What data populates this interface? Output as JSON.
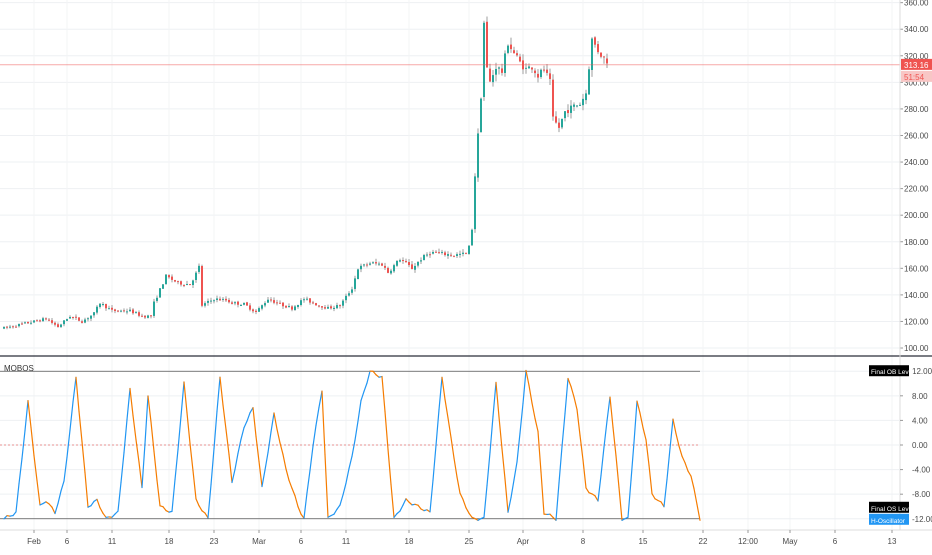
{
  "colors": {
    "up": "#26a69a",
    "down": "#ef5350",
    "wick": "#9e9e9e",
    "grid": "#eef0f3",
    "axis_text": "#4a4a4a",
    "price_line": "#ef5350",
    "osc_rise": "#2196f3",
    "osc_fall": "#f57c00",
    "level_line": "#555555",
    "zero_line": "#e57373",
    "black_tag": "#000000",
    "blue_tag": "#2196f3"
  },
  "chart_data": [
    {
      "type": "candlestick",
      "title": "",
      "y_ticks": [
        "100.00",
        "120.00",
        "140.00",
        "160.00",
        "180.00",
        "200.00",
        "220.00",
        "240.00",
        "260.00",
        "280.00",
        "300.00",
        "320.00",
        "340.00",
        "360.00"
      ],
      "ylim": [
        97,
        362
      ],
      "last_price": "313.16",
      "countdown": "51:54",
      "anchors": [
        [
          0,
          115
        ],
        [
          6,
          118
        ],
        [
          14,
          122
        ],
        [
          18,
          116
        ],
        [
          22,
          124
        ],
        [
          26,
          120
        ],
        [
          30,
          126
        ],
        [
          32,
          134
        ],
        [
          36,
          128
        ],
        [
          42,
          128
        ],
        [
          46,
          124
        ],
        [
          49,
          124
        ],
        [
          50,
          134
        ],
        [
          54,
          154
        ],
        [
          58,
          149
        ],
        [
          62,
          148
        ],
        [
          64,
          156
        ],
        [
          65,
          161
        ],
        [
          66,
          132
        ],
        [
          70,
          137
        ],
        [
          74,
          136
        ],
        [
          76,
          134
        ],
        [
          80,
          133
        ],
        [
          84,
          127
        ],
        [
          88,
          137
        ],
        [
          92,
          133
        ],
        [
          96,
          130
        ],
        [
          100,
          137
        ],
        [
          104,
          133
        ],
        [
          108,
          130
        ],
        [
          112,
          132
        ],
        [
          116,
          145
        ],
        [
          118,
          160
        ],
        [
          122,
          164
        ],
        [
          126,
          163
        ],
        [
          128,
          157
        ],
        [
          132,
          167
        ],
        [
          136,
          160
        ],
        [
          139,
          167
        ],
        [
          142,
          172
        ],
        [
          146,
          171
        ],
        [
          150,
          170
        ],
        [
          154,
          171
        ],
        [
          155,
          176
        ],
        [
          156,
          190
        ],
        [
          157,
          230
        ],
        [
          158,
          260
        ],
        [
          159,
          290
        ],
        [
          160,
          345
        ],
        [
          161,
          310
        ],
        [
          162,
          300
        ],
        [
          164,
          312
        ],
        [
          166,
          308
        ],
        [
          168,
          330
        ],
        [
          170,
          322
        ],
        [
          172,
          315
        ],
        [
          174,
          310
        ],
        [
          176,
          312
        ],
        [
          178,
          305
        ],
        [
          180,
          310
        ],
        [
          182,
          300
        ],
        [
          183,
          272
        ],
        [
          185,
          266
        ],
        [
          187,
          278
        ],
        [
          190,
          282
        ],
        [
          192,
          284
        ],
        [
          194,
          292
        ],
        [
          196,
          332
        ],
        [
          198,
          324
        ],
        [
          200,
          318
        ],
        [
          202,
          315
        ]
      ],
      "x_labels": [
        {
          "label": "Feb",
          "slot": 10
        },
        {
          "label": "6",
          "slot": 21
        },
        {
          "label": "11",
          "slot": 36
        },
        {
          "label": "18",
          "slot": 55
        },
        {
          "label": "23",
          "slot": 70
        },
        {
          "label": "Mar",
          "slot": 85
        },
        {
          "label": "6",
          "slot": 99
        },
        {
          "label": "11",
          "slot": 114
        },
        {
          "label": "18",
          "slot": 135
        },
        {
          "label": "25",
          "slot": 155
        },
        {
          "label": "Apr",
          "slot": 173
        },
        {
          "label": "8",
          "slot": 193
        },
        {
          "label": "15",
          "slot": 213
        },
        {
          "label": "22",
          "slot": 233
        },
        {
          "label": "12:00",
          "slot": 248
        },
        {
          "label": "May",
          "slot": 262
        },
        {
          "label": "6",
          "slot": 277
        },
        {
          "label": "13",
          "slot": 296
        }
      ]
    },
    {
      "type": "line",
      "title": "MOBOS",
      "y_ticks": [
        "12.00",
        "8.00",
        "4.00",
        "0.00",
        "-4.00",
        "-8.00",
        "-12.00"
      ],
      "ylim": [
        -13.5,
        13.5
      ],
      "ob_level": 12,
      "os_level": -12,
      "ob_label": "Final OB Level",
      "os_label": "Final OS Level",
      "osc_label": "H-Oscillator",
      "anchors": [
        [
          0,
          -12
        ],
        [
          4,
          -11
        ],
        [
          8,
          7
        ],
        [
          12,
          -10
        ],
        [
          14,
          -9
        ],
        [
          17,
          -11
        ],
        [
          20,
          -6
        ],
        [
          24,
          11
        ],
        [
          28,
          -10
        ],
        [
          31,
          -9
        ],
        [
          34,
          -12
        ],
        [
          38,
          -11
        ],
        [
          42,
          9
        ],
        [
          46,
          -7
        ],
        [
          48,
          8
        ],
        [
          52,
          -10
        ],
        [
          56,
          -11
        ],
        [
          60,
          10
        ],
        [
          64,
          -9
        ],
        [
          68,
          -12
        ],
        [
          72,
          11
        ],
        [
          76,
          -6
        ],
        [
          80,
          3
        ],
        [
          83,
          6
        ],
        [
          86,
          -7
        ],
        [
          90,
          5
        ],
        [
          94,
          -4
        ],
        [
          98,
          -10
        ],
        [
          100,
          -12
        ],
        [
          103,
          0
        ],
        [
          106,
          9
        ],
        [
          108,
          -12
        ],
        [
          112,
          -10
        ],
        [
          116,
          -2
        ],
        [
          119,
          7
        ],
        [
          122,
          12
        ],
        [
          126,
          11
        ],
        [
          130,
          -12
        ],
        [
          134,
          -9
        ],
        [
          138,
          -10
        ],
        [
          142,
          -11
        ],
        [
          146,
          11
        ],
        [
          149,
          1
        ],
        [
          152,
          -8
        ],
        [
          156,
          -12
        ],
        [
          160,
          -12
        ],
        [
          164,
          10
        ],
        [
          168,
          -11
        ],
        [
          171,
          -3
        ],
        [
          174,
          12
        ],
        [
          178,
          2
        ],
        [
          180,
          -11
        ],
        [
          184,
          -12
        ],
        [
          188,
          11
        ],
        [
          191,
          6
        ],
        [
          194,
          -7
        ],
        [
          198,
          -9
        ],
        [
          202,
          8
        ],
        [
          206,
          -12
        ],
        [
          208,
          -12
        ],
        [
          211,
          7
        ],
        [
          214,
          1
        ],
        [
          216,
          -8
        ],
        [
          220,
          -10
        ],
        [
          223,
          4
        ],
        [
          226,
          -2
        ],
        [
          229,
          -5
        ],
        [
          232,
          -12
        ]
      ]
    }
  ]
}
